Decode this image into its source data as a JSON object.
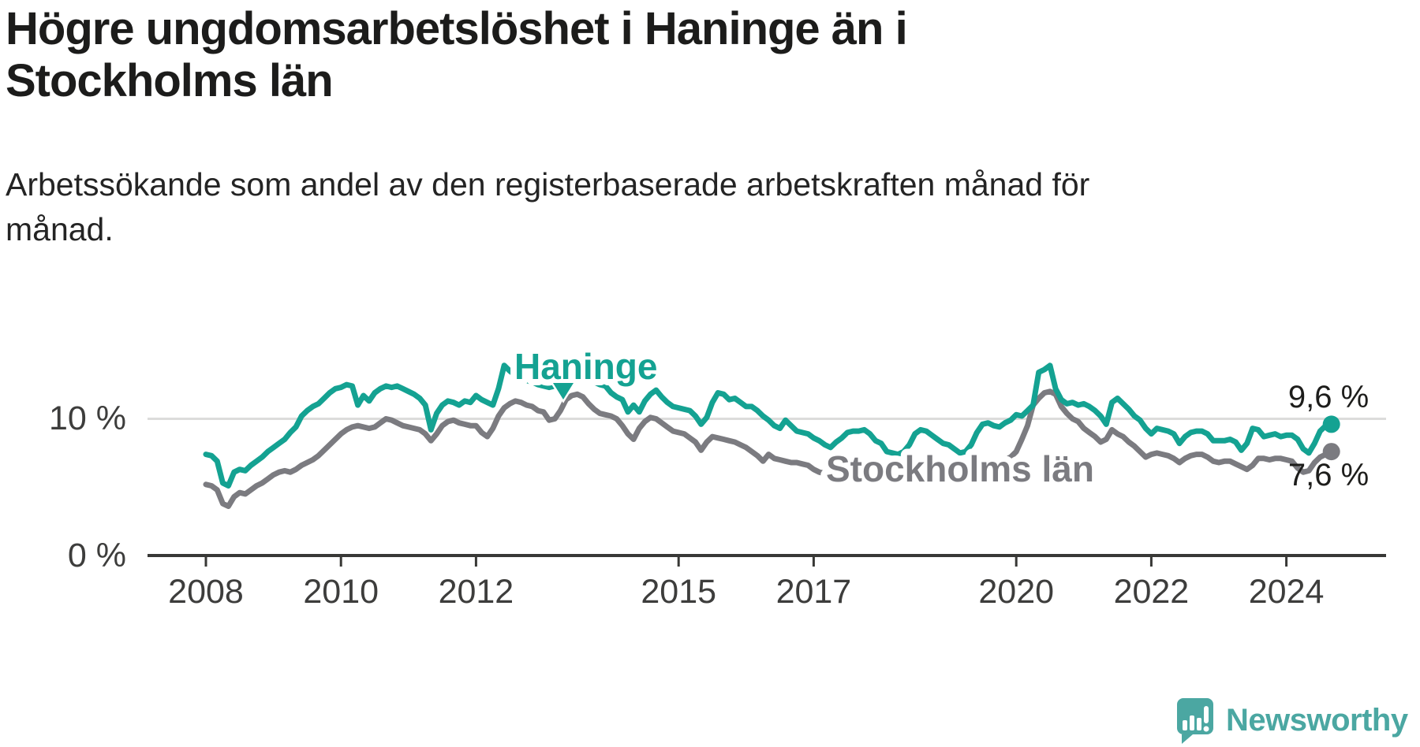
{
  "header": {
    "title": "Högre ungdomsarbetslöshet i Haninge än i Stockholms län",
    "title_lines": [
      "Högre ungdomsarbetslöshet i Haninge än i",
      "Stockholms län"
    ],
    "subtitle": "Arbetssökande som andel av den registerbaserade arbetskraften månad för månad.",
    "subtitle_lines": [
      "Arbetssökande som andel av den registerbaserade arbetskraften månad för",
      "månad."
    ]
  },
  "branding": {
    "name": "Newsworthy",
    "logo_icon": "speech-bubble-bar-chart-icon",
    "color": "#4ba7a2"
  },
  "colors": {
    "haninge_line": "#14a292",
    "stockholm_line": "#7b7b80",
    "gridline": "#dcdcdb",
    "axis": "#383836",
    "text": "#1c1c1b"
  },
  "chart_data": {
    "type": "line",
    "title": "Högre ungdomsarbetslöshet i Haninge än i Stockholms län",
    "subtitle": "Arbetssökande som andel av den registerbaserade arbetskraften månad för månad.",
    "frequency": "monthly",
    "start": "2008-01",
    "end": "2024-09",
    "grid": "single horizontal gridline at 10 %",
    "legend": "inline labels on lines with white halo",
    "unit": "%",
    "x_axis": {
      "tick_years": [
        2008,
        2010,
        2012,
        2015,
        2017,
        2020,
        2022,
        2024
      ],
      "tick_labels": [
        "2008",
        "2010",
        "2012",
        "2015",
        "2017",
        "2020",
        "2022",
        "2024"
      ]
    },
    "y_axis": {
      "tick_values": [
        0,
        10
      ],
      "tick_labels": [
        "0 %",
        "10 %"
      ],
      "ylim": [
        0,
        14.5
      ]
    },
    "series": [
      {
        "name": "Haninge",
        "color": "#14a292",
        "end_label": "9,6 %",
        "end_value": 9.6,
        "values": [
          7.4,
          7.3,
          6.9,
          5.3,
          5.1,
          6.1,
          6.3,
          6.2,
          6.6,
          6.9,
          7.2,
          7.6,
          7.9,
          8.2,
          8.5,
          9.0,
          9.4,
          10.2,
          10.6,
          10.9,
          11.1,
          11.5,
          11.9,
          12.2,
          12.3,
          12.5,
          12.4,
          11.0,
          11.7,
          11.3,
          11.9,
          12.2,
          12.4,
          12.3,
          12.4,
          12.2,
          12.0,
          11.8,
          11.5,
          11.0,
          9.2,
          10.4,
          11.0,
          11.3,
          11.2,
          11.0,
          11.3,
          11.2,
          11.7,
          11.4,
          11.2,
          11.0,
          12.2,
          13.9,
          13.5,
          13.2,
          13.0,
          12.8,
          12.7,
          12.5,
          12.4,
          12.3,
          12.4,
          12.6,
          12.8,
          13.0,
          13.2,
          13.1,
          12.9,
          12.7,
          12.5,
          12.4,
          11.9,
          11.6,
          11.4,
          10.5,
          11.0,
          10.5,
          11.3,
          11.8,
          12.1,
          11.6,
          11.2,
          10.9,
          10.8,
          10.7,
          10.6,
          10.2,
          9.6,
          10.1,
          11.2,
          11.9,
          11.8,
          11.4,
          11.5,
          11.2,
          10.9,
          10.9,
          10.6,
          10.2,
          9.9,
          9.5,
          9.3,
          9.9,
          9.5,
          9.1,
          9.0,
          8.9,
          8.6,
          8.4,
          8.1,
          7.9,
          8.3,
          8.6,
          9.0,
          9.1,
          9.1,
          9.2,
          8.9,
          8.4,
          8.2,
          7.6,
          7.5,
          7.4,
          7.6,
          8.1,
          8.9,
          9.2,
          9.1,
          8.8,
          8.5,
          8.2,
          8.1,
          7.8,
          7.5,
          7.6,
          8.1,
          9.0,
          9.6,
          9.7,
          9.5,
          9.4,
          9.7,
          9.9,
          10.3,
          10.2,
          10.6,
          11.0,
          13.4,
          13.6,
          13.9,
          12.2,
          11.4,
          11.1,
          11.2,
          11.0,
          11.1,
          10.9,
          10.6,
          10.2,
          9.6,
          11.2,
          11.5,
          11.1,
          10.7,
          10.2,
          9.9,
          9.3,
          8.9,
          9.3,
          9.2,
          9.1,
          8.9,
          8.2,
          8.7,
          9.0,
          9.1,
          9.1,
          8.9,
          8.4,
          8.4,
          8.4,
          8.5,
          8.3,
          7.7,
          8.2,
          9.3,
          9.2,
          8.7,
          8.8,
          8.9,
          8.7,
          8.8,
          8.8,
          8.5,
          7.8,
          7.5,
          8.2,
          9.1,
          9.5,
          9.6
        ]
      },
      {
        "name": "Stockholms län",
        "color": "#7b7b80",
        "end_label": "7,6 %",
        "end_value": 7.6,
        "values": [
          5.2,
          5.1,
          4.8,
          3.8,
          3.6,
          4.3,
          4.6,
          4.5,
          4.8,
          5.1,
          5.3,
          5.6,
          5.9,
          6.1,
          6.2,
          6.1,
          6.3,
          6.6,
          6.8,
          7.0,
          7.3,
          7.7,
          8.1,
          8.5,
          8.9,
          9.2,
          9.4,
          9.5,
          9.4,
          9.3,
          9.4,
          9.7,
          10.0,
          9.9,
          9.7,
          9.5,
          9.4,
          9.3,
          9.2,
          8.9,
          8.4,
          8.9,
          9.5,
          9.8,
          9.9,
          9.7,
          9.6,
          9.5,
          9.5,
          9.0,
          8.7,
          9.3,
          10.2,
          10.8,
          11.1,
          11.3,
          11.2,
          11.0,
          10.9,
          10.6,
          10.5,
          9.9,
          10.0,
          10.6,
          11.4,
          11.7,
          11.8,
          11.6,
          11.1,
          10.7,
          10.4,
          10.3,
          10.2,
          10.0,
          9.5,
          8.9,
          8.5,
          9.3,
          9.8,
          10.1,
          10.0,
          9.7,
          9.4,
          9.1,
          9.0,
          8.9,
          8.6,
          8.3,
          7.7,
          8.3,
          8.7,
          8.6,
          8.5,
          8.4,
          8.3,
          8.1,
          7.9,
          7.6,
          7.3,
          6.9,
          7.4,
          7.1,
          7.0,
          6.9,
          6.8,
          6.8,
          6.7,
          6.6,
          6.3,
          6.1,
          6.0,
          5.9,
          5.8,
          5.9,
          6.1,
          6.3,
          6.4,
          6.4,
          6.3,
          6.2,
          6.1,
          6.0,
          5.8,
          5.7,
          5.7,
          5.8,
          6.0,
          6.3,
          6.5,
          6.4,
          6.3,
          6.2,
          6.1,
          6.0,
          5.9,
          5.8,
          5.9,
          6.2,
          6.6,
          6.9,
          7.0,
          6.9,
          7.0,
          7.2,
          7.6,
          8.5,
          9.5,
          11.0,
          11.5,
          11.9,
          12.0,
          11.8,
          10.9,
          10.4,
          10.0,
          9.8,
          9.3,
          9.0,
          8.7,
          8.3,
          8.5,
          9.2,
          8.9,
          8.7,
          8.3,
          8.0,
          7.6,
          7.2,
          7.4,
          7.5,
          7.4,
          7.3,
          7.1,
          6.8,
          7.1,
          7.3,
          7.4,
          7.4,
          7.2,
          6.9,
          6.8,
          6.9,
          6.9,
          6.7,
          6.5,
          6.3,
          6.6,
          7.1,
          7.1,
          7.0,
          7.1,
          7.1,
          7.0,
          6.9,
          6.4,
          6.1,
          6.2,
          6.8,
          7.2,
          7.4,
          7.6
        ]
      }
    ]
  }
}
